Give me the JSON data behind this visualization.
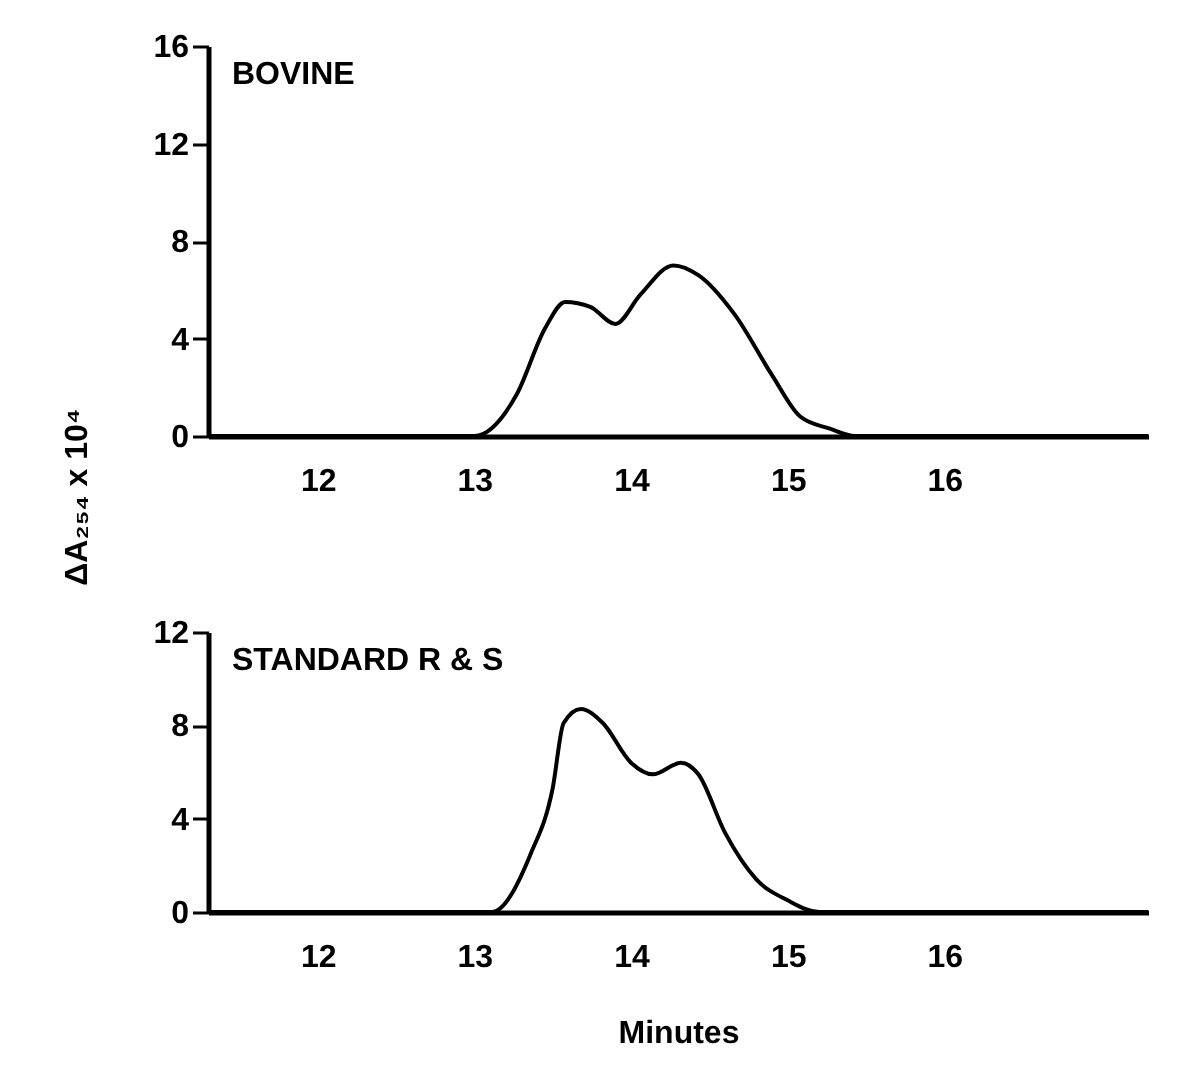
{
  "chart_data": [
    {
      "type": "line",
      "title": "BOVINE",
      "ylabel": "ΔA₂₅₄ x 10⁴",
      "xlim": [
        11.3,
        17.3
      ],
      "ylim": [
        0,
        16
      ],
      "xticks": [
        12,
        13,
        14,
        15,
        16
      ],
      "yticks": [
        0,
        4,
        8,
        12,
        16
      ],
      "series": [
        {
          "color": "#000000",
          "x": [
            11.3,
            13.0,
            13.27,
            13.45,
            13.58,
            13.74,
            13.9,
            14.06,
            14.27,
            14.43,
            14.66,
            14.9,
            15.08,
            15.27,
            15.43,
            17.3
          ],
          "values": [
            0,
            0,
            1.7,
            4.4,
            5.5,
            5.3,
            4.6,
            5.8,
            7.0,
            6.6,
            5.0,
            2.5,
            0.8,
            0.3,
            0,
            0
          ]
        }
      ]
    },
    {
      "type": "line",
      "title": "STANDARD R & S",
      "xlabel": "Minutes",
      "xlim": [
        11.3,
        17.3
      ],
      "ylim": [
        0,
        12
      ],
      "xticks": [
        12,
        13,
        14,
        15,
        16
      ],
      "yticks": [
        0,
        4,
        8,
        12
      ],
      "series": [
        {
          "color": "#000000",
          "x": [
            11.3,
            13.11,
            13.36,
            13.5,
            13.57,
            13.68,
            13.82,
            14.0,
            14.14,
            14.32,
            14.43,
            14.6,
            14.8,
            15.0,
            15.2,
            17.3
          ],
          "values": [
            0,
            0,
            2.5,
            5.3,
            8.1,
            8.7,
            8.1,
            6.4,
            5.9,
            6.4,
            5.9,
            3.4,
            1.4,
            0.5,
            0,
            0
          ]
        }
      ]
    }
  ]
}
